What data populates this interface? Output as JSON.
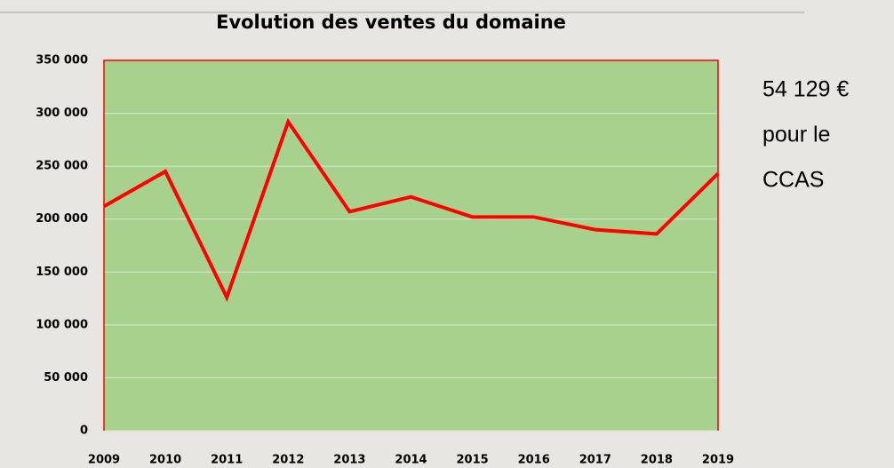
{
  "chart_data": {
    "type": "line",
    "title": "Evolution des ventes du domaine",
    "categories": [
      "2009",
      "2010",
      "2011",
      "2012",
      "2013",
      "2014",
      "2015",
      "2016",
      "2017",
      "2018",
      "2019"
    ],
    "series": [
      {
        "name": "Ventes",
        "color": "#ff0000",
        "values": [
          212000,
          245000,
          126000,
          292000,
          207000,
          221000,
          202000,
          202000,
          190000,
          186000,
          243000
        ]
      }
    ],
    "ylim": [
      0,
      350000
    ],
    "yticks": [
      0,
      {
        "value": 50000,
        "label": "50 000"
      },
      {
        "value": 100000,
        "label": "100 000"
      },
      {
        "value": 150000,
        "label": "150 000"
      },
      {
        "value": 200000,
        "label": "200 000"
      },
      {
        "value": 250000,
        "label": "250 000"
      },
      {
        "value": 300000,
        "label": "300 000"
      },
      {
        "value": 350000,
        "label": "350 000"
      }
    ],
    "grid": true,
    "plot_color": "#a9d18e",
    "annotation": [
      "54 129 €",
      "pour le",
      "CCAS"
    ]
  }
}
